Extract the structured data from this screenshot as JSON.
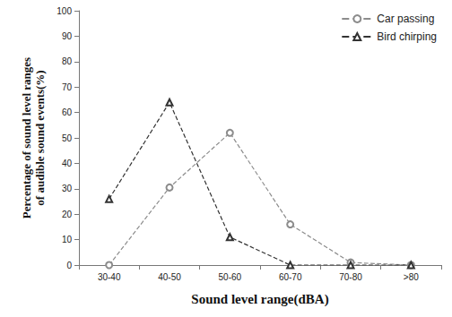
{
  "chart_data": {
    "type": "line",
    "x_label": "Sound level range(dBA)",
    "y_label": "Percentage of sound level ranges\nof audible sound events(%)",
    "categories": [
      "30-40",
      "40-50",
      "50-60",
      "60-70",
      "70-80",
      ">80"
    ],
    "series": [
      {
        "name": "Car passing",
        "color": "#8c8c8c",
        "marker": "circle",
        "line_style": "dashed",
        "values": [
          0,
          30.5,
          52,
          16,
          1,
          0
        ]
      },
      {
        "name": "Bird chirping",
        "color": "#333333",
        "marker": "triangle",
        "line_style": "dashed",
        "values": [
          26,
          64,
          11,
          0,
          0,
          0
        ]
      }
    ],
    "ylim": [
      0,
      100
    ],
    "yticks": [
      0,
      10,
      20,
      30,
      40,
      50,
      60,
      70,
      80,
      90,
      100
    ],
    "grid": false,
    "legend": "upper right"
  }
}
